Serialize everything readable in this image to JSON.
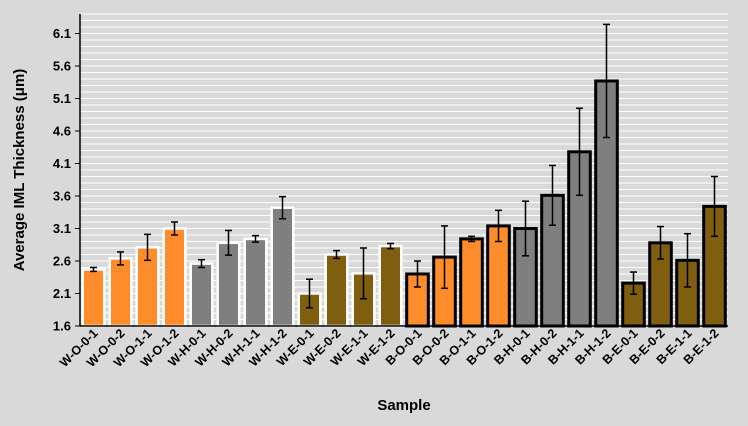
{
  "colors": {
    "background": "#d9d9d9",
    "gridline": "#ffffff",
    "orange": "#ff8c2a",
    "gray": "#7f7f7f",
    "brown": "#7f5e10",
    "border_W": "#ffffff",
    "border_B": "#000000",
    "error_bar": "#000000"
  },
  "chart_data": {
    "type": "bar",
    "xlabel": "Sample",
    "ylabel": "Average IML Thickness (μm)",
    "ylim": [
      1.6,
      6.4
    ],
    "yticks": [
      "1.6",
      "2.1",
      "2.6",
      "3.1",
      "3.6",
      "4.1",
      "4.6",
      "5.1",
      "5.6",
      "6.1"
    ],
    "grid": true,
    "categories": [
      "W-O-0-1",
      "W-O-0-2",
      "W-O-1-1",
      "W-O-1-2",
      "W-H-0-1",
      "W-H-0-2",
      "W-H-1-1",
      "W-H-1-2",
      "W-E-0-1",
      "W-E-0-2",
      "W-E-1-1",
      "W-E-1-2",
      "B-O-0-1",
      "B-O-0-2",
      "B-O-1-1",
      "B-O-1-2",
      "B-H-0-1",
      "B-H-0-2",
      "B-H-1-1",
      "B-H-1-2",
      "B-E-0-1",
      "B-E-0-2",
      "B-E-1-1",
      "B-E-1-2"
    ],
    "values": [
      2.47,
      2.64,
      2.81,
      3.1,
      2.56,
      2.88,
      2.94,
      3.42,
      2.1,
      2.7,
      2.41,
      2.83,
      2.4,
      2.66,
      2.94,
      3.14,
      3.1,
      3.61,
      4.28,
      5.37,
      2.26,
      2.88,
      2.61,
      3.44
    ],
    "errors": [
      0.03,
      0.1,
      0.2,
      0.1,
      0.06,
      0.19,
      0.05,
      0.17,
      0.22,
      0.06,
      0.39,
      0.04,
      0.2,
      0.48,
      0.04,
      0.24,
      0.42,
      0.46,
      0.67,
      0.87,
      0.17,
      0.25,
      0.41,
      0.46
    ],
    "color_groups": [
      "orange",
      "orange",
      "orange",
      "orange",
      "gray",
      "gray",
      "gray",
      "gray",
      "brown",
      "brown",
      "brown",
      "brown",
      "orange",
      "orange",
      "orange",
      "orange",
      "gray",
      "gray",
      "gray",
      "gray",
      "brown",
      "brown",
      "brown",
      "brown"
    ],
    "border_groups": [
      "W",
      "W",
      "W",
      "W",
      "W",
      "W",
      "W",
      "W",
      "W",
      "W",
      "W",
      "W",
      "B",
      "B",
      "B",
      "B",
      "B",
      "B",
      "B",
      "B",
      "B",
      "B",
      "B",
      "B"
    ]
  }
}
